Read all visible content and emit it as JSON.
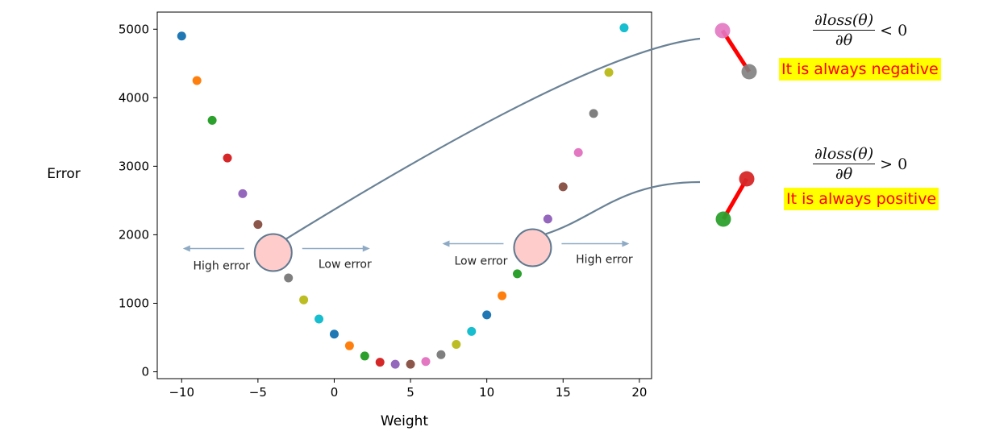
{
  "chart_data": {
    "type": "scatter",
    "xlabel": "Weight",
    "ylabel": "Error",
    "xlim": [
      -11.6,
      20.8
    ],
    "ylim": [
      -100,
      5250
    ],
    "xticks": [
      -10,
      -5,
      0,
      5,
      10,
      15,
      20
    ],
    "yticks": [
      0,
      1000,
      2000,
      3000,
      4000,
      5000
    ],
    "x": [
      -10,
      -9,
      -8,
      -7,
      -6,
      -5,
      -4,
      -3,
      -2,
      -1,
      0,
      1,
      2,
      3,
      4,
      5,
      6,
      7,
      8,
      9,
      10,
      11,
      12,
      13,
      14,
      15,
      16,
      17,
      18,
      19
    ],
    "y": [
      4900,
      4250,
      3670,
      3120,
      2600,
      2150,
      1740,
      1370,
      1050,
      770,
      550,
      380,
      230,
      140,
      110,
      110,
      150,
      250,
      400,
      590,
      830,
      1110,
      1430,
      1810,
      2230,
      2700,
      3200,
      3770,
      4370,
      5020
    ],
    "palette": [
      "#1f77b4",
      "#ff7f0e",
      "#2ca02c",
      "#d62728",
      "#9467bd",
      "#8c564b",
      "#e377c2",
      "#7f7f7f",
      "#bcbd22",
      "#17becf"
    ],
    "highlights": [
      {
        "x": -4,
        "y": 1740,
        "left_label": "High error",
        "right_label": "Low error"
      },
      {
        "x": 13,
        "y": 1810,
        "left_label": "Low error",
        "right_label": "High error"
      }
    ]
  },
  "annotations": {
    "negative": {
      "formula_num": "∂loss(θ)",
      "formula_den": "∂θ",
      "relation": "< 0",
      "label": "It is always negative",
      "from_color": "#e377c2",
      "to_color": "#7f7f7f"
    },
    "positive": {
      "formula_num": "∂loss(θ)",
      "formula_den": "∂θ",
      "relation": "> 0",
      "label": "It is always positive",
      "from_color": "#2ca02c",
      "to_color": "#d62728"
    }
  }
}
